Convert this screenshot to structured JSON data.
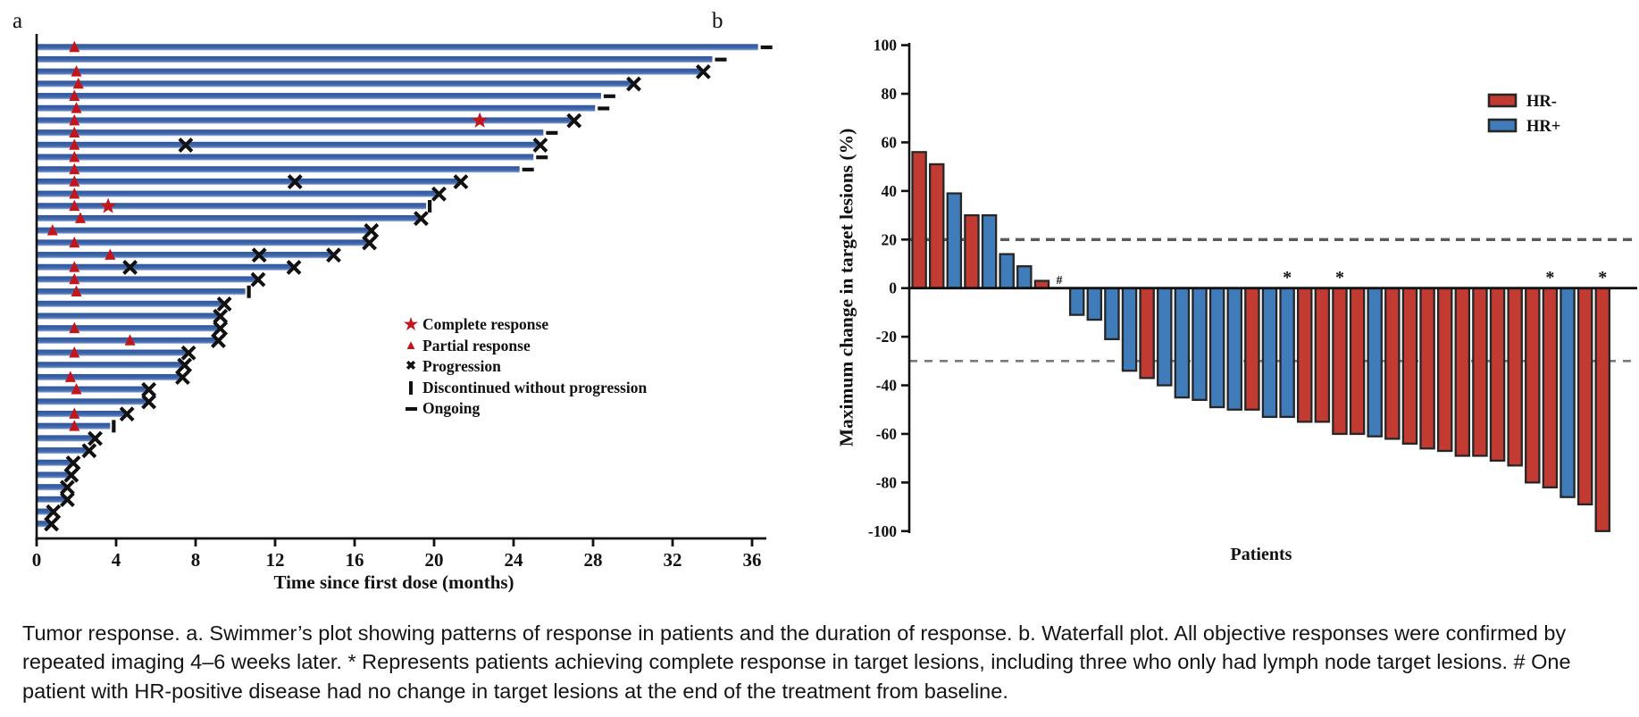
{
  "caption": "Tumor response. a. Swimmer’s plot showing patterns of response in patients and the duration of response. b. Waterfall plot. All objective responses were confirmed by repeated imaging 4–6 weeks later. * Represents patients achieving complete response in target lesions, including three who only had lymph node target lesions. # One patient with HR-positive disease had no change in target lesions at the end of the treatment from baseline.",
  "colors": {
    "swimmer_bar": "#3b64a8",
    "marker_red": "#c3161c",
    "hr_negative_red": "#c23b32",
    "hr_positive_blue": "#3f7cb9",
    "axis_black": "#111111",
    "reference_line_gray": "#5f5f5f"
  },
  "chart_data": [
    {
      "type": "swimmer",
      "panel_label": "a",
      "xlabel": "Time since first dose (months)",
      "xlim": [
        0,
        37.5
      ],
      "x_ticks": [
        0,
        4,
        8,
        12,
        16,
        20,
        24,
        28,
        32,
        36
      ],
      "legend": [
        {
          "marker": "star",
          "label": "Complete response"
        },
        {
          "marker": "triangle",
          "label": "Partial response"
        },
        {
          "marker": "cross",
          "label": "Progression"
        },
        {
          "marker": "vbar",
          "label": "Discontinued without progression"
        },
        {
          "marker": "dash",
          "label": "Ongoing"
        }
      ],
      "patients": [
        {
          "duration": 36.3,
          "end": "ongoing",
          "pr": 1.9
        },
        {
          "duration": 34.0,
          "end": "ongoing"
        },
        {
          "duration": 33.5,
          "end": "progression",
          "pr": 2.0
        },
        {
          "duration": 30.0,
          "end": "progression",
          "pr": 2.1
        },
        {
          "duration": 28.4,
          "end": "ongoing",
          "pr": 1.9
        },
        {
          "duration": 28.1,
          "end": "ongoing",
          "pr": 2.0
        },
        {
          "duration": 27.0,
          "end": "progression",
          "pr": 1.9,
          "cr": 22.3
        },
        {
          "duration": 25.5,
          "end": "ongoing",
          "pr": 1.9
        },
        {
          "duration": 25.3,
          "end": "progression",
          "pr": 1.9,
          "prog": [
            7.5
          ]
        },
        {
          "duration": 25.0,
          "end": "ongoing",
          "pr": 1.9
        },
        {
          "duration": 24.3,
          "end": "ongoing",
          "pr": 1.9
        },
        {
          "duration": 21.3,
          "end": "progression",
          "pr": 1.9,
          "prog": [
            13.0
          ]
        },
        {
          "duration": 20.2,
          "end": "progression",
          "pr": 1.9
        },
        {
          "duration": 19.6,
          "end": "discontinued",
          "pr": 1.9,
          "cr": 3.6
        },
        {
          "duration": 19.3,
          "end": "progression",
          "pr": 2.2
        },
        {
          "duration": 16.8,
          "end": "progression",
          "pr": 0.8
        },
        {
          "duration": 16.7,
          "end": "progression",
          "pr": 1.9
        },
        {
          "duration": 14.9,
          "end": "progression",
          "pr": 3.7,
          "prog": [
            11.2
          ]
        },
        {
          "duration": 12.9,
          "end": "progression",
          "pr": 1.9,
          "prog": [
            4.7
          ]
        },
        {
          "duration": 11.1,
          "end": "progression",
          "pr": 1.9
        },
        {
          "duration": 10.5,
          "end": "discontinued",
          "pr": 2.0
        },
        {
          "duration": 9.4,
          "end": "progression"
        },
        {
          "duration": 9.2,
          "end": "progression"
        },
        {
          "duration": 9.2,
          "end": "progression",
          "pr": 1.9
        },
        {
          "duration": 9.1,
          "end": "progression",
          "pr": 4.7
        },
        {
          "duration": 7.6,
          "end": "progression",
          "pr": 1.9
        },
        {
          "duration": 7.4,
          "end": "progression"
        },
        {
          "duration": 7.3,
          "end": "progression",
          "pr": 1.7
        },
        {
          "duration": 5.6,
          "end": "progression",
          "pr": 2.0
        },
        {
          "duration": 5.6,
          "end": "progression"
        },
        {
          "duration": 4.5,
          "end": "progression",
          "pr": 1.9
        },
        {
          "duration": 3.7,
          "end": "discontinued",
          "pr": 1.9
        },
        {
          "duration": 2.9,
          "end": "progression"
        },
        {
          "duration": 2.6,
          "end": "progression"
        },
        {
          "duration": 1.8,
          "end": "progression"
        },
        {
          "duration": 1.7,
          "end": "progression"
        },
        {
          "duration": 1.5,
          "end": "progression"
        },
        {
          "duration": 1.5,
          "end": "progression"
        },
        {
          "duration": 0.8,
          "end": "progression"
        },
        {
          "duration": 0.7,
          "end": "progression"
        }
      ]
    },
    {
      "type": "bar",
      "subtype": "waterfall",
      "panel_label": "b",
      "ylabel": "Maximum change in target lesions (%)",
      "xlabel": "Patients",
      "ylim": [
        -100,
        100
      ],
      "y_ticks": [
        100,
        80,
        60,
        40,
        20,
        0,
        -20,
        -40,
        -60,
        -80,
        -100
      ],
      "reference_lines": [
        20,
        -30
      ],
      "legend": [
        {
          "label": "HR-",
          "color": "#c23b32"
        },
        {
          "label": "HR+",
          "color": "#3f7cb9"
        }
      ],
      "bars": [
        {
          "value": 56,
          "group": "HR-"
        },
        {
          "value": 51,
          "group": "HR-"
        },
        {
          "value": 39,
          "group": "HR+"
        },
        {
          "value": 30,
          "group": "HR-"
        },
        {
          "value": 30,
          "group": "HR+"
        },
        {
          "value": 14,
          "group": "HR+"
        },
        {
          "value": 9,
          "group": "HR+"
        },
        {
          "value": 3,
          "group": "HR-"
        },
        {
          "value": 0,
          "group": "HR+",
          "annotation": "#"
        },
        {
          "value": -11,
          "group": "HR+"
        },
        {
          "value": -13,
          "group": "HR+"
        },
        {
          "value": -21,
          "group": "HR+"
        },
        {
          "value": -34,
          "group": "HR+"
        },
        {
          "value": -37,
          "group": "HR-"
        },
        {
          "value": -40,
          "group": "HR+"
        },
        {
          "value": -45,
          "group": "HR+"
        },
        {
          "value": -46,
          "group": "HR+"
        },
        {
          "value": -49,
          "group": "HR+"
        },
        {
          "value": -50,
          "group": "HR+"
        },
        {
          "value": -50,
          "group": "HR-"
        },
        {
          "value": -53,
          "group": "HR+"
        },
        {
          "value": -53,
          "group": "HR+",
          "annotation": "*"
        },
        {
          "value": -55,
          "group": "HR-"
        },
        {
          "value": -55,
          "group": "HR-"
        },
        {
          "value": -60,
          "group": "HR-",
          "annotation": "*"
        },
        {
          "value": -60,
          "group": "HR-"
        },
        {
          "value": -61,
          "group": "HR+"
        },
        {
          "value": -62,
          "group": "HR-"
        },
        {
          "value": -64,
          "group": "HR-"
        },
        {
          "value": -66,
          "group": "HR-"
        },
        {
          "value": -67,
          "group": "HR-"
        },
        {
          "value": -69,
          "group": "HR-"
        },
        {
          "value": -69,
          "group": "HR-"
        },
        {
          "value": -71,
          "group": "HR-"
        },
        {
          "value": -73,
          "group": "HR-"
        },
        {
          "value": -80,
          "group": "HR-"
        },
        {
          "value": -82,
          "group": "HR-",
          "annotation": "*"
        },
        {
          "value": -86,
          "group": "HR+"
        },
        {
          "value": -89,
          "group": "HR-"
        },
        {
          "value": -100,
          "group": "HR-",
          "annotation": "*"
        }
      ]
    }
  ]
}
